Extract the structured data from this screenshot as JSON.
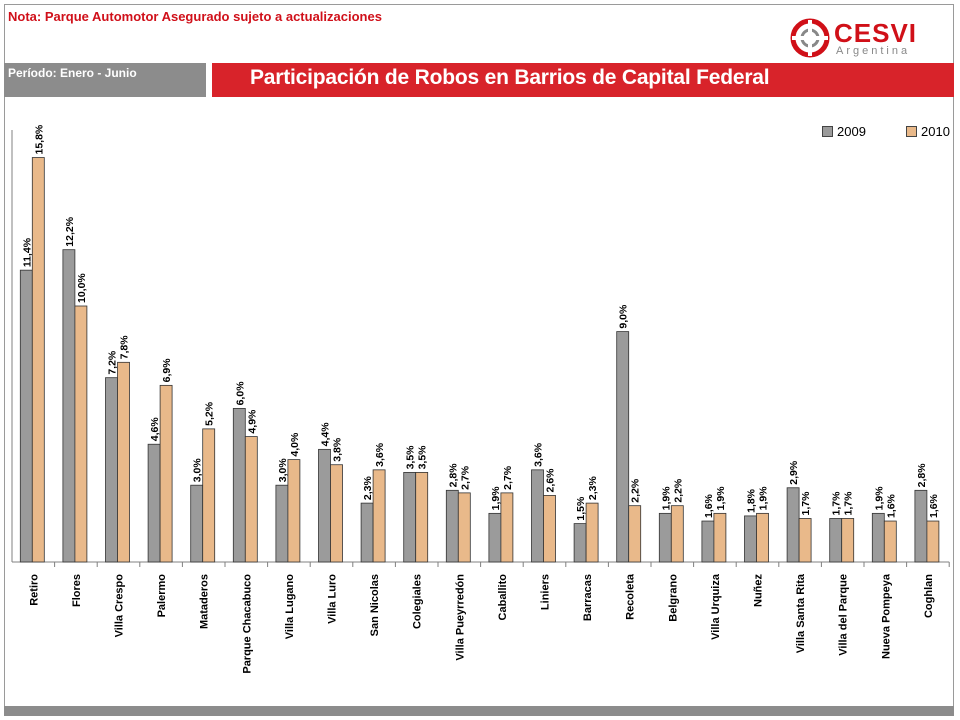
{
  "header": {
    "note": "Nota: Parque Automotor Asegurado sujeto a actualizaciones",
    "period": "Período: Enero - Junio",
    "logo_word": "CESVI",
    "logo_sub": "Argentina"
  },
  "colors": {
    "accent": "#d8232a",
    "bar_2009": "#9b9b9b",
    "bar_2010": "#e9b98a"
  },
  "chart_data": {
    "type": "bar",
    "title": "Participación de Robos en Barrios de Capital Federal",
    "categories": [
      "Retiro",
      "Flores",
      "Villa Crespo",
      "Palermo",
      "Mataderos",
      "Parque Chacabuco",
      "Villa Lugano",
      "Villa Luro",
      "San Nicolas",
      "Colegiales",
      "Villa Pueyrredón",
      "Caballito",
      "Liniers",
      "Barracas",
      "Recoleta",
      "Belgrano",
      "Villa Urquiza",
      "Nuñez",
      "Villa Santa Rita",
      "Villa del Parque",
      "Nueva Pompeya",
      "Coghlan"
    ],
    "series": [
      {
        "name": "2009",
        "values": [
          11.4,
          12.2,
          7.2,
          4.6,
          3.0,
          6.0,
          3.0,
          4.4,
          2.3,
          3.5,
          2.8,
          1.9,
          3.6,
          1.5,
          9.0,
          1.9,
          1.6,
          1.8,
          2.9,
          1.7,
          1.9,
          2.8
        ],
        "labels": [
          "11,4%",
          "12,2%",
          "7,2%",
          "4,6%",
          "3,0%",
          "6,0%",
          "3,0%",
          "4,4%",
          "2,3%",
          "3,5%",
          "2,8%",
          "1,9%",
          "3,6%",
          "1,5%",
          "9,0%",
          "1,9%",
          "1,6%",
          "1,8%",
          "2,9%",
          "1,7%",
          "1,9%",
          "2,8%"
        ]
      },
      {
        "name": "2010",
        "values": [
          15.8,
          10.0,
          7.8,
          6.9,
          5.2,
          4.9,
          4.0,
          3.8,
          3.6,
          3.5,
          2.7,
          2.7,
          2.6,
          2.3,
          2.2,
          2.2,
          1.9,
          1.9,
          1.7,
          1.7,
          1.6,
          1.6
        ],
        "labels": [
          "15,8%",
          "10,0%",
          "7,8%",
          "6,9%",
          "5,2%",
          "4,9%",
          "4,0%",
          "3,8%",
          "3,6%",
          "3,5%",
          "2,7%",
          "2,7%",
          "2,6%",
          "2,3%",
          "2,2%",
          "2,2%",
          "1,9%",
          "1,9%",
          "1,7%",
          "1,7%",
          "1,6%",
          "1,6%"
        ]
      }
    ],
    "ylim": [
      0,
      16
    ],
    "legend": "top-right",
    "grid": false
  }
}
